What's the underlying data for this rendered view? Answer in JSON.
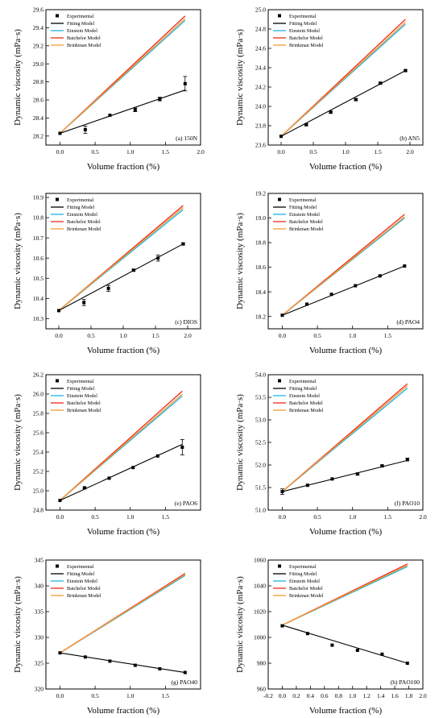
{
  "chart_data": [
    {
      "type": "line",
      "panel_label": "(a) 150N",
      "xlabel": "Volume fraction (%)",
      "ylabel": "Dynamic viscosity (mPa·s)",
      "xlim": [
        -0.2,
        2.0
      ],
      "ylim": [
        28.1,
        29.6
      ],
      "xticks": [
        0.0,
        0.5,
        1.0,
        1.5,
        2.0
      ],
      "xtick_labels": [
        "0.0",
        "0.5",
        "1.0",
        "1.5",
        "2.0"
      ],
      "yticks": [
        28.2,
        28.4,
        28.6,
        28.8,
        29.0,
        29.2,
        29.4,
        29.6
      ],
      "ytick_labels": [
        "28.2",
        "28.4",
        "28.6",
        "28.8",
        "29.0",
        "29.2",
        "29.4",
        "29.6"
      ],
      "experimental": {
        "x": [
          0,
          0.36,
          0.71,
          1.07,
          1.42,
          1.78
        ],
        "y": [
          28.23,
          28.27,
          28.43,
          28.49,
          28.61,
          28.78
        ],
        "err": [
          0,
          0.04,
          0,
          0.02,
          0.02,
          0.08
        ]
      },
      "fitting": {
        "x": [
          0,
          1.78
        ],
        "y": [
          28.23,
          28.71
        ]
      },
      "einstein": {
        "x": [
          0,
          1.78
        ],
        "y": [
          28.23,
          29.48
        ]
      },
      "batchelor": {
        "x": [
          0,
          1.78
        ],
        "y": [
          28.23,
          29.53
        ]
      },
      "brinkman": {
        "x": [
          0,
          1.78
        ],
        "y": [
          28.23,
          29.5
        ]
      }
    },
    {
      "type": "line",
      "panel_label": "(b) AN5",
      "xlabel": "Volume fraction (%)",
      "ylabel": "Dynamic viscosity (mPa·s)",
      "xlim": [
        -0.2,
        2.2
      ],
      "ylim": [
        23.6,
        25.0
      ],
      "xticks": [
        0.0,
        0.5,
        1.0,
        1.5,
        2.0
      ],
      "xtick_labels": [
        "0.0",
        "0.5",
        "1.0",
        "1.5",
        "2.0"
      ],
      "yticks": [
        23.6,
        23.8,
        24.0,
        24.2,
        24.4,
        24.6,
        24.8,
        25.0
      ],
      "ytick_labels": [
        "23.6",
        "23.8",
        "24.0",
        "24.2",
        "24.4",
        "24.6",
        "24.8",
        "25.0"
      ],
      "experimental": {
        "x": [
          0,
          0.39,
          0.77,
          1.16,
          1.54,
          1.93
        ],
        "y": [
          23.69,
          23.81,
          23.94,
          24.07,
          24.24,
          24.37
        ],
        "err": [
          0,
          0.01,
          0.01,
          0.01,
          0.01,
          0.01
        ]
      },
      "fitting": {
        "x": [
          0,
          1.93
        ],
        "y": [
          23.69,
          24.37
        ]
      },
      "einstein": {
        "x": [
          0,
          1.93
        ],
        "y": [
          23.69,
          24.85
        ]
      },
      "batchelor": {
        "x": [
          0,
          1.93
        ],
        "y": [
          23.69,
          24.9
        ]
      },
      "brinkman": {
        "x": [
          0,
          1.93
        ],
        "y": [
          23.69,
          24.87
        ]
      }
    },
    {
      "type": "line",
      "panel_label": "(c) DIOS",
      "xlabel": "Volume fraction (%)",
      "ylabel": "Dynamic viscosity (mPa·s)",
      "xlim": [
        -0.2,
        2.2
      ],
      "ylim": [
        10.25,
        10.92
      ],
      "xticks": [
        0.0,
        0.5,
        1.0,
        1.5,
        2.0
      ],
      "xtick_labels": [
        "0.0",
        "0.5",
        "1.0",
        "1.5",
        "2.0"
      ],
      "yticks": [
        10.3,
        10.4,
        10.5,
        10.6,
        10.7,
        10.8,
        10.9
      ],
      "ytick_labels": [
        "10.3",
        "10.4",
        "10.5",
        "10.6",
        "10.7",
        "10.8",
        "10.9"
      ],
      "experimental": {
        "x": [
          0,
          0.39,
          0.77,
          1.16,
          1.54,
          1.93
        ],
        "y": [
          10.34,
          10.38,
          10.45,
          10.54,
          10.6,
          10.67
        ],
        "err": [
          0,
          0.015,
          0.015,
          0.005,
          0.015,
          0.005
        ]
      },
      "fitting": {
        "x": [
          0,
          1.93
        ],
        "y": [
          10.34,
          10.67
        ]
      },
      "einstein": {
        "x": [
          0,
          1.93
        ],
        "y": [
          10.34,
          10.84
        ]
      },
      "batchelor": {
        "x": [
          0,
          1.93
        ],
        "y": [
          10.34,
          10.86
        ]
      },
      "brinkman": {
        "x": [
          0,
          1.93
        ],
        "y": [
          10.34,
          10.85
        ]
      }
    },
    {
      "type": "line",
      "panel_label": "(d) PAO4",
      "xlabel": "Volume fraction (%)",
      "ylabel": "Dynamic viscosity (mPa·s)",
      "xlim": [
        -0.2,
        2.0
      ],
      "ylim": [
        18.1,
        19.2
      ],
      "xticks": [
        0.0,
        0.5,
        1.0,
        1.5
      ],
      "xtick_labels": [
        "0.0",
        "0.5",
        "1.0",
        "1.5"
      ],
      "yticks": [
        18.2,
        18.4,
        18.6,
        18.8,
        19.0,
        19.2
      ],
      "ytick_labels": [
        "18.2",
        "18.4",
        "18.6",
        "18.8",
        "19.0",
        "19.2"
      ],
      "experimental": {
        "x": [
          0,
          0.35,
          0.7,
          1.04,
          1.39,
          1.74
        ],
        "y": [
          18.21,
          18.3,
          18.38,
          18.45,
          18.53,
          18.61
        ],
        "err": [
          0,
          0,
          0,
          0,
          0,
          0
        ]
      },
      "fitting": {
        "x": [
          0,
          1.74
        ],
        "y": [
          18.21,
          18.61
        ]
      },
      "einstein": {
        "x": [
          0,
          1.74
        ],
        "y": [
          18.21,
          19.0
        ]
      },
      "batchelor": {
        "x": [
          0,
          1.74
        ],
        "y": [
          18.21,
          19.03
        ]
      },
      "brinkman": {
        "x": [
          0,
          1.74
        ],
        "y": [
          18.21,
          19.01
        ]
      }
    },
    {
      "type": "line",
      "panel_label": "(e) PAO6",
      "xlabel": "Volume fraction (%)",
      "ylabel": "Dynamic viscosity (mPa·s)",
      "xlim": [
        -0.2,
        2.0
      ],
      "ylim": [
        24.8,
        26.2
      ],
      "xticks": [
        0.0,
        0.5,
        1.0,
        1.5
      ],
      "xtick_labels": [
        "0.0",
        "0.5",
        "1.0",
        "1.5"
      ],
      "yticks": [
        24.8,
        25.0,
        25.2,
        25.4,
        25.6,
        25.8,
        26.0,
        26.2
      ],
      "ytick_labels": [
        "24.8",
        "25.0",
        "25.2",
        "25.4",
        "25.6",
        "25.8",
        "26.0",
        "26.2"
      ],
      "experimental": {
        "x": [
          0,
          0.35,
          0.7,
          1.04,
          1.39,
          1.74
        ],
        "y": [
          24.9,
          25.03,
          25.13,
          25.24,
          25.36,
          25.45
        ],
        "err": [
          0,
          0.01,
          0,
          0,
          0,
          0.08
        ]
      },
      "fitting": {
        "x": [
          0,
          1.74
        ],
        "y": [
          24.9,
          25.48
        ]
      },
      "einstein": {
        "x": [
          0,
          1.74
        ],
        "y": [
          24.9,
          25.98
        ]
      },
      "batchelor": {
        "x": [
          0,
          1.74
        ],
        "y": [
          24.9,
          26.03
        ]
      },
      "brinkman": {
        "x": [
          0,
          1.74
        ],
        "y": [
          24.9,
          26.0
        ]
      }
    },
    {
      "type": "line",
      "panel_label": "(f) PAO10",
      "xlabel": "Volume fraction (%)",
      "ylabel": "Dynamic viscosity (mPa·s)",
      "xlim": [
        -0.2,
        2.0
      ],
      "ylim": [
        51.0,
        54.0
      ],
      "xticks": [
        0.0,
        0.5,
        1.0,
        1.5,
        2.0
      ],
      "xtick_labels": [
        "0.0",
        "0.5",
        "1.0",
        "1.5",
        "2.0"
      ],
      "yticks": [
        51.0,
        51.5,
        52.0,
        52.5,
        53.0,
        53.5,
        54.0
      ],
      "ytick_labels": [
        "51.0",
        "51.5",
        "52.0",
        "52.5",
        "53.0",
        "53.5",
        "54.0"
      ],
      "experimental": {
        "x": [
          0,
          0.36,
          0.71,
          1.07,
          1.42,
          1.78
        ],
        "y": [
          51.41,
          51.55,
          51.69,
          51.8,
          51.98,
          52.12
        ],
        "err": [
          0.06,
          0,
          0,
          0.02,
          0.02,
          0.03
        ]
      },
      "fitting": {
        "x": [
          0,
          1.78
        ],
        "y": [
          51.41,
          52.1
        ]
      },
      "einstein": {
        "x": [
          0,
          1.78
        ],
        "y": [
          51.41,
          53.7
        ]
      },
      "batchelor": {
        "x": [
          0,
          1.78
        ],
        "y": [
          51.41,
          53.8
        ]
      },
      "brinkman": {
        "x": [
          0,
          1.78
        ],
        "y": [
          51.41,
          53.75
        ]
      }
    },
    {
      "type": "line",
      "panel_label": "(g) PAO40",
      "xlabel": "Volume fraction (%)",
      "ylabel": "Dynamic viscosity (mPa·s)",
      "xlim": [
        -0.2,
        2.0
      ],
      "ylim": [
        320,
        345
      ],
      "xticks": [
        0.0,
        0.5,
        1.0,
        1.5
      ],
      "xtick_labels": [
        "0.0",
        "0.5",
        "1.0",
        "1.5"
      ],
      "yticks": [
        320,
        325,
        330,
        335,
        340,
        345
      ],
      "ytick_labels": [
        "320",
        "325",
        "330",
        "335",
        "340",
        "345"
      ],
      "experimental": {
        "x": [
          0,
          0.36,
          0.71,
          1.07,
          1.42,
          1.78
        ],
        "y": [
          327.0,
          326.2,
          325.4,
          324.6,
          323.9,
          323.2
        ],
        "err": [
          0,
          0,
          0,
          0,
          0,
          0
        ]
      },
      "fitting": {
        "x": [
          0,
          1.78
        ],
        "y": [
          327.0,
          323.2
        ]
      },
      "einstein": {
        "x": [
          0,
          1.78
        ],
        "y": [
          327.0,
          342.0
        ]
      },
      "batchelor": {
        "x": [
          0,
          1.78
        ],
        "y": [
          327.0,
          342.4
        ]
      },
      "brinkman": {
        "x": [
          0,
          1.78
        ],
        "y": [
          327.0,
          342.2
        ]
      }
    },
    {
      "type": "line",
      "panel_label": "(h) PAO100",
      "xlabel": "Volume fraction (%)",
      "ylabel": "Dynamic viscosity (mPa·s)",
      "xlim": [
        -0.2,
        2.0
      ],
      "ylim": [
        960,
        1060
      ],
      "xticks": [
        -0.2,
        0.0,
        0.2,
        0.4,
        0.6,
        0.8,
        1.0,
        1.2,
        1.4,
        1.6,
        1.8,
        2.0
      ],
      "xtick_labels": [
        "-0.2",
        "0.0",
        "0.2",
        "0.4",
        "0.6",
        "0.8",
        "1.0",
        "1.2",
        "1.4",
        "1.6",
        "1.8",
        "2.0"
      ],
      "yticks": [
        960,
        980,
        1000,
        1020,
        1040,
        1060
      ],
      "ytick_labels": [
        "960",
        "980",
        "1000",
        "1020",
        "1040",
        "1060"
      ],
      "experimental": {
        "x": [
          0,
          0.36,
          0.71,
          1.07,
          1.42,
          1.78
        ],
        "y": [
          1009,
          1003,
          994,
          990,
          987,
          980
        ],
        "err": [
          0,
          0,
          0,
          0,
          0,
          0
        ]
      },
      "fitting": {
        "x": [
          0,
          1.78
        ],
        "y": [
          1009.5,
          980
        ]
      },
      "einstein": {
        "x": [
          0,
          1.78
        ],
        "y": [
          1009.5,
          1055
        ]
      },
      "batchelor": {
        "x": [
          0,
          1.78
        ],
        "y": [
          1009.5,
          1057
        ]
      },
      "brinkman": {
        "x": [
          0,
          1.78
        ],
        "y": [
          1009.5,
          1056
        ]
      }
    }
  ],
  "legend": {
    "placement": "top-left",
    "entries": [
      {
        "key": "experimental",
        "label": "Experimental",
        "color": "#000000",
        "marker": "square"
      },
      {
        "key": "fitting",
        "label": "Fitting Model",
        "color": "#000000"
      },
      {
        "key": "einstein",
        "label": "Einstein Model",
        "color": "#1fb3e6"
      },
      {
        "key": "batchelor",
        "label": "Batchelor Model",
        "color": "#ee2a1b"
      },
      {
        "key": "brinkman",
        "label": "Brinkman Model",
        "color": "#f39c2f"
      }
    ]
  }
}
